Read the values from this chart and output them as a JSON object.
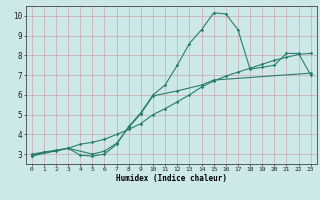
{
  "title": "",
  "xlabel": "Humidex (Indice chaleur)",
  "bg_color": "#cce8e8",
  "line_color": "#2a7d6e",
  "grid_color": "#ccaaaa",
  "xlim": [
    -0.5,
    23.5
  ],
  "ylim": [
    2.5,
    10.5
  ],
  "xticks": [
    0,
    1,
    2,
    3,
    4,
    5,
    6,
    7,
    8,
    9,
    10,
    11,
    12,
    13,
    14,
    15,
    16,
    17,
    18,
    19,
    20,
    21,
    22,
    23
  ],
  "yticks": [
    3,
    4,
    5,
    6,
    7,
    8,
    9,
    10
  ],
  "line1_x": [
    0,
    1,
    2,
    3,
    4,
    5,
    6,
    7,
    8,
    9,
    10,
    11,
    12,
    13,
    14,
    15,
    16,
    17,
    18,
    19,
    20,
    21,
    22,
    23
  ],
  "line1_y": [
    3.0,
    3.1,
    3.15,
    3.3,
    3.5,
    3.6,
    3.75,
    4.0,
    4.25,
    4.55,
    5.0,
    5.3,
    5.65,
    6.0,
    6.4,
    6.7,
    6.95,
    7.15,
    7.35,
    7.55,
    7.75,
    7.9,
    8.05,
    8.1
  ],
  "line2_x": [
    0,
    1,
    2,
    3,
    4,
    5,
    6,
    7,
    8,
    9,
    10,
    11,
    12,
    13,
    14,
    15,
    16,
    17,
    18,
    19,
    20,
    21,
    22,
    23
  ],
  "line2_y": [
    2.9,
    3.1,
    3.2,
    3.3,
    2.95,
    2.9,
    3.0,
    3.5,
    4.4,
    5.1,
    6.0,
    6.5,
    7.5,
    8.6,
    9.3,
    10.15,
    10.1,
    9.3,
    7.3,
    7.4,
    7.5,
    8.1,
    8.1,
    7.0
  ],
  "line3_x": [
    0,
    3,
    5,
    6,
    7,
    8,
    9,
    10,
    12,
    14,
    15,
    23
  ],
  "line3_y": [
    2.9,
    3.3,
    3.0,
    3.15,
    3.55,
    4.35,
    5.05,
    5.95,
    6.2,
    6.5,
    6.75,
    7.1
  ]
}
